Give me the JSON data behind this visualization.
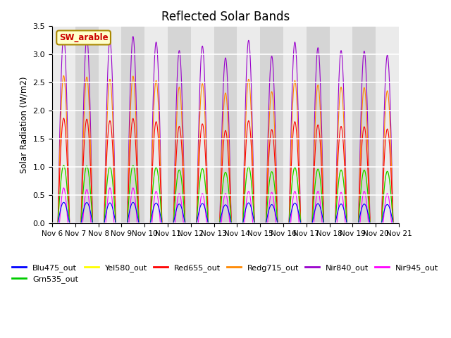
{
  "title": "Reflected Solar Bands",
  "ylabel": "Solar Radiation (W/m2)",
  "xlabel": "",
  "ylim": [
    0,
    3.5
  ],
  "yticks": [
    0.0,
    0.5,
    1.0,
    1.5,
    2.0,
    2.5,
    3.0,
    3.5
  ],
  "xtick_labels": [
    "Nov 6",
    "Nov 7",
    "Nov 8",
    "Nov 9",
    "Nov 10",
    "Nov 11",
    "Nov 12",
    "Nov 13",
    "Nov 14",
    "Nov 15",
    "Nov 16",
    "Nov 17",
    "Nov 18",
    "Nov 19",
    "Nov 20",
    "Nov 21"
  ],
  "series_order": [
    "Nir840_out",
    "Redg715_out",
    "Red655_out",
    "Yel580_out",
    "Grn535_out",
    "Nir945_out",
    "Blu475_out"
  ],
  "legend_order": [
    "Blu475_out",
    "Grn535_out",
    "Yel580_out",
    "Red655_out",
    "Redg715_out",
    "Nir840_out",
    "Nir945_out"
  ],
  "colors": {
    "Blu475_out": "#0000FF",
    "Grn535_out": "#00CC00",
    "Yel580_out": "#FFFF00",
    "Red655_out": "#FF0000",
    "Redg715_out": "#FF8800",
    "Nir840_out": "#9900CC",
    "Nir945_out": "#FF00FF"
  },
  "peak_heights_nir840": [
    3.33,
    3.3,
    3.25,
    3.32,
    3.22,
    3.07,
    3.15,
    2.94,
    3.25,
    2.97,
    3.22,
    3.12,
    3.07,
    3.06,
    2.99
  ],
  "peak_heights_nir945": [
    0.63,
    0.6,
    0.63,
    0.63,
    0.57,
    0.53,
    0.53,
    0.53,
    0.57,
    0.55,
    0.57,
    0.57,
    0.55,
    0.57,
    0.53
  ],
  "scales": {
    "Blu475_out": 0.112,
    "Grn535_out": 0.309,
    "Yel580_out": 0.309,
    "Red655_out": 0.561,
    "Redg715_out": 0.788,
    "Nir840_out": 1.0
  },
  "annotation_text": "SW_arable",
  "annotation_color": "#CC0000",
  "annotation_bg": "#FFFFCC",
  "annotation_border": "#AA8800",
  "plot_bg_light": "#EBEBEB",
  "plot_bg_dark": "#D5D5D5",
  "grid_color": "#FFFFFF",
  "title_fontsize": 12,
  "num_days": 15,
  "points_per_day": 288
}
